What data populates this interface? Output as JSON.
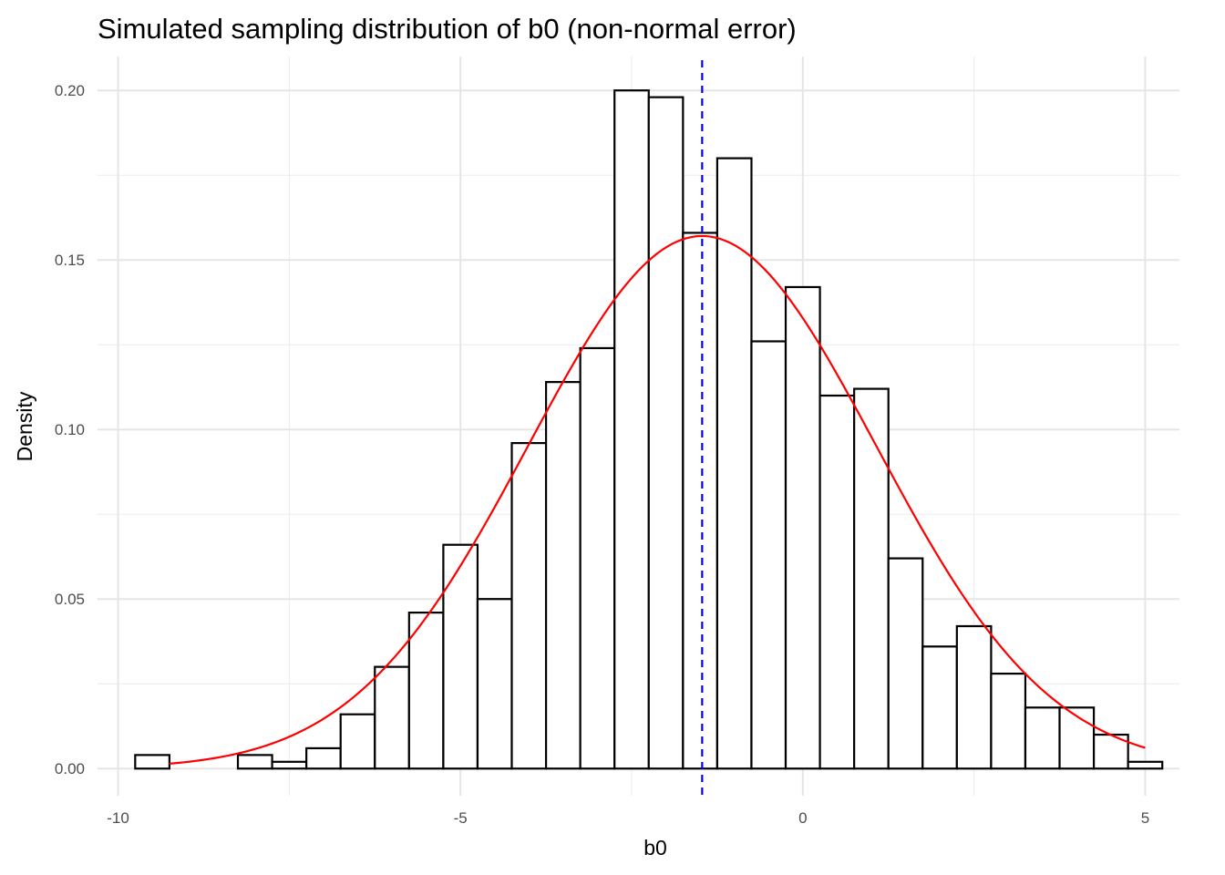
{
  "chart_data": {
    "type": "bar",
    "title": "Simulated sampling distribution of b0 (non-normal error)",
    "xlabel": "b0",
    "ylabel": "Density",
    "xlim": [
      -10.3,
      5.5
    ],
    "ylim": [
      -0.008,
      0.21
    ],
    "x_ticks": [
      -10,
      -5,
      0,
      5
    ],
    "x_tick_labels": [
      "-10",
      "-5",
      "0",
      "5"
    ],
    "y_ticks": [
      0.0,
      0.05,
      0.1,
      0.15,
      0.2
    ],
    "y_tick_labels": [
      "0.00",
      "0.05",
      "0.10",
      "0.15",
      "0.20"
    ],
    "grid": true,
    "histogram": {
      "bin_width": 0.5,
      "bin_start": -9.75,
      "bar_fill": "#ffffff",
      "bar_stroke": "#000000",
      "densities": [
        0.004,
        0.0,
        0.0,
        0.004,
        0.002,
        0.006,
        0.016,
        0.03,
        0.046,
        0.066,
        0.05,
        0.096,
        0.114,
        0.124,
        0.2,
        0.198,
        0.158,
        0.18,
        0.126,
        0.142,
        0.11,
        0.112,
        0.062,
        0.036,
        0.042,
        0.028,
        0.018,
        0.018,
        0.01,
        0.002
      ]
    },
    "normal_curve": {
      "color": "#ff0000",
      "mean": -1.47,
      "sd": 2.54,
      "x_range": [
        -9.25,
        5.0
      ]
    },
    "mean_line": {
      "x": -1.47,
      "color": "#0000ff",
      "style": "dashed"
    }
  }
}
